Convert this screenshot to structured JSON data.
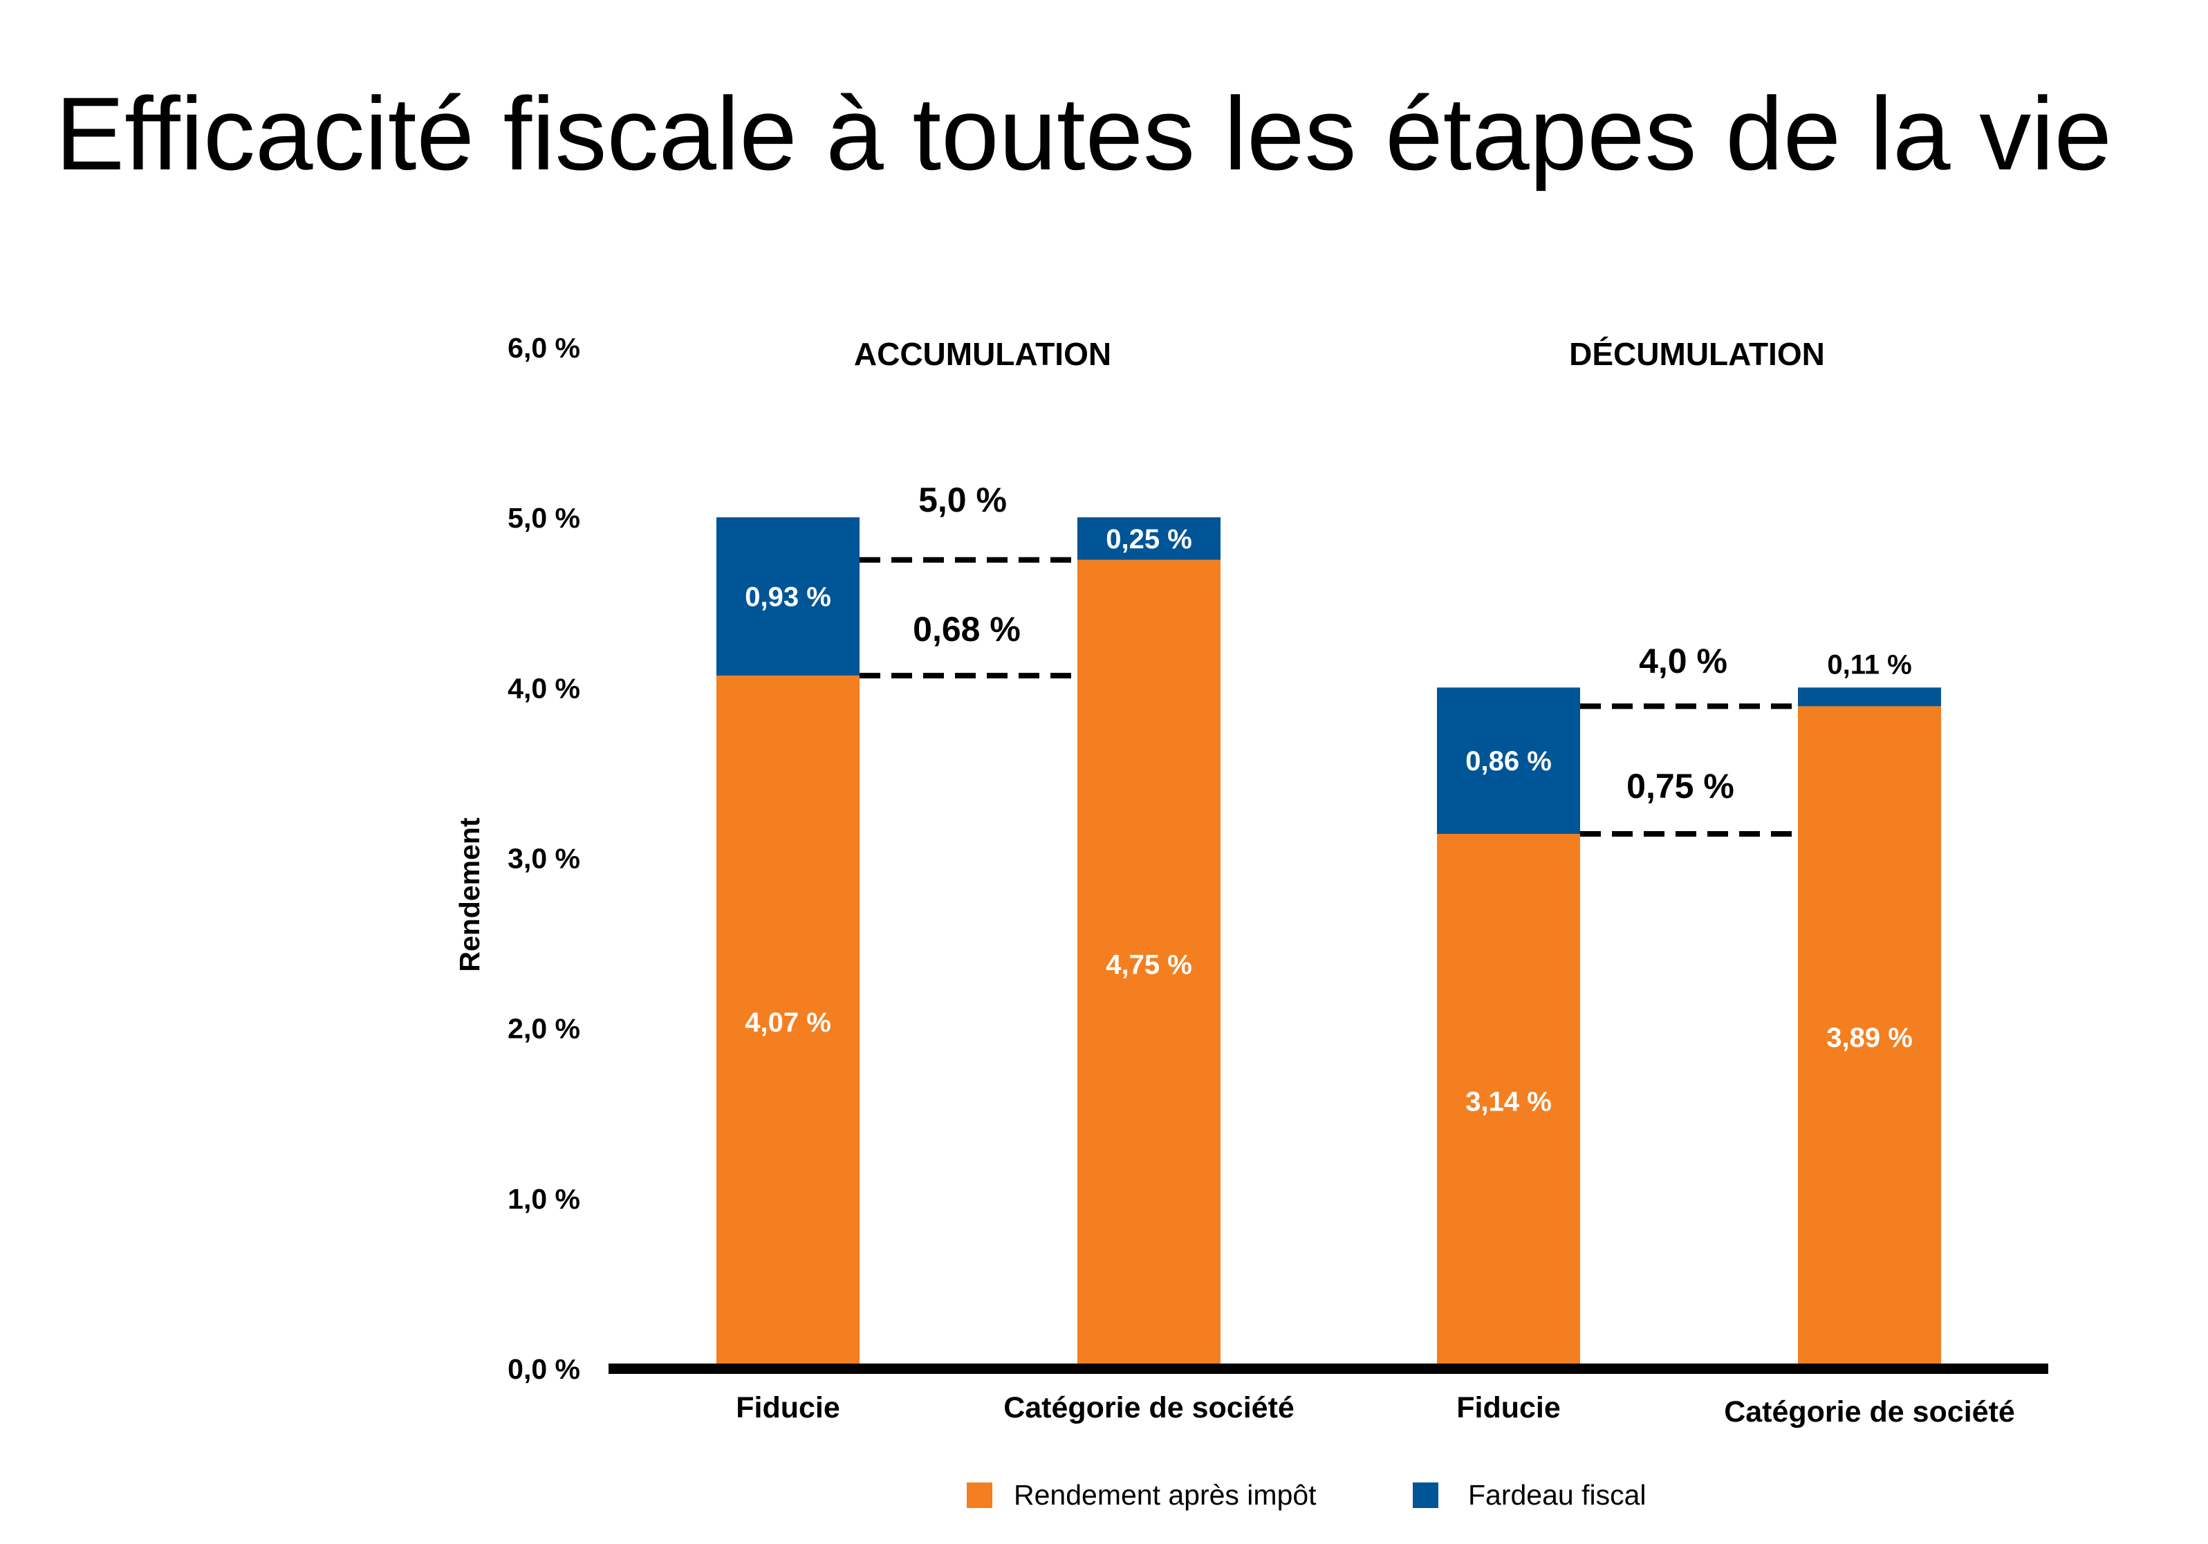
{
  "chart_data": {
    "type": "bar",
    "stacked": true,
    "title": "Efficacité fiscale à toutes les étapes de la vie",
    "ylabel": "Rendement",
    "ylim": [
      0,
      6
    ],
    "yticks": [
      "0,0 %",
      "1,0 %",
      "2,0 %",
      "3,0 %",
      "4,0 %",
      "5,0 %",
      "6,0 %"
    ],
    "grid": false,
    "legend_position": "bottom",
    "groups": [
      {
        "label": "ACCUMULATION",
        "categories": [
          "Fiducie",
          "Catégorie de société"
        ],
        "annotations": {
          "total": "5,0 %",
          "difference": "0,68 %"
        }
      },
      {
        "label": "DÉCUMULATION",
        "categories": [
          "Fiducie",
          "Catégorie de société"
        ],
        "annotations": {
          "total": "4,0 %",
          "difference": "0,75 %"
        }
      }
    ],
    "categories": [
      "Fiducie",
      "Catégorie de société",
      "Fiducie",
      "Catégorie de société"
    ],
    "series": [
      {
        "name": "Rendement après impôt",
        "color": "#F47F20",
        "values": [
          4.07,
          4.75,
          3.14,
          3.89
        ],
        "labels": [
          "4,07 %",
          "4,75 %",
          "3,14 %",
          "3,89 %"
        ]
      },
      {
        "name": "Fardeau fiscal",
        "color": "#005596",
        "values": [
          0.93,
          0.25,
          0.86,
          0.11
        ],
        "labels": [
          "0,93 %",
          "0,25 %",
          "0,86 %",
          "0,11 %"
        ]
      }
    ]
  }
}
